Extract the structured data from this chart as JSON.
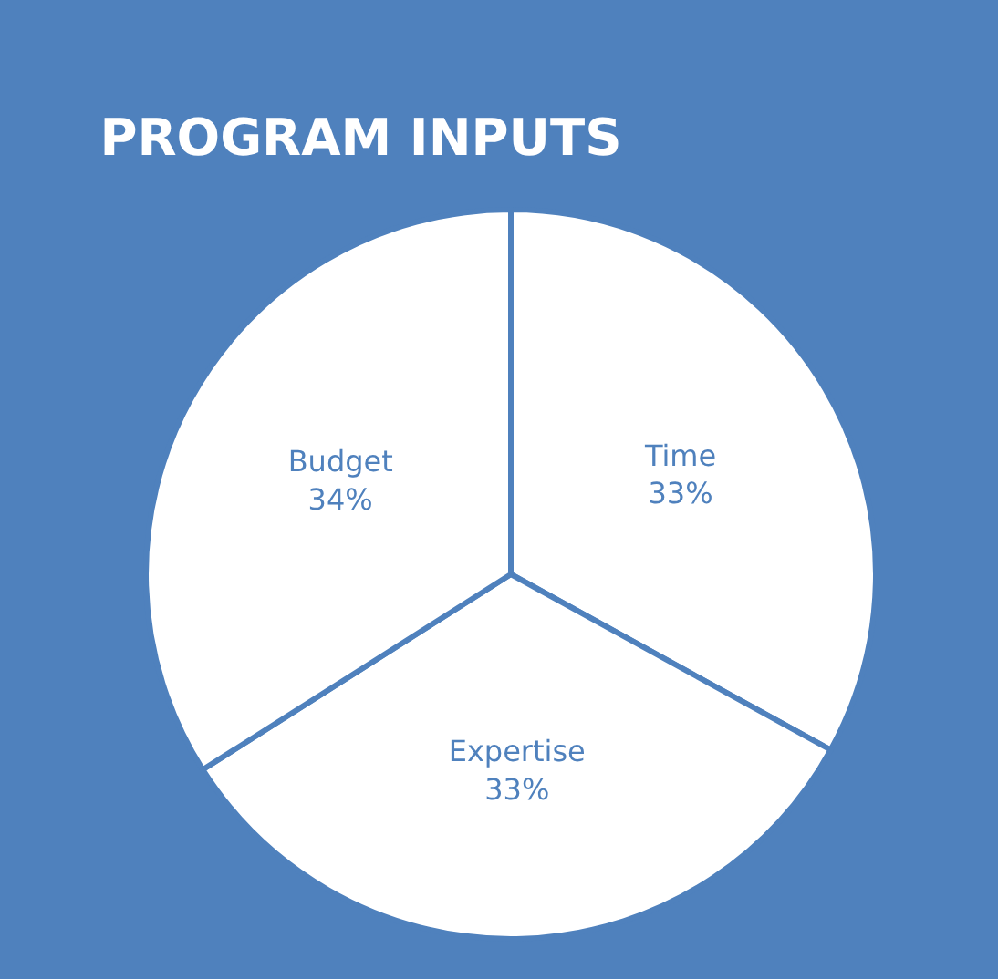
{
  "chart_data": {
    "type": "pie",
    "title": "PROGRAM INPUTS",
    "categories": [
      "Time",
      "Expertise",
      "Budget"
    ],
    "values": [
      33,
      33,
      34
    ],
    "value_labels": [
      "33%",
      "33%",
      "34%"
    ],
    "colors": [
      "#ffffff",
      "#ffffff",
      "#ffffff"
    ],
    "legend": false
  }
}
